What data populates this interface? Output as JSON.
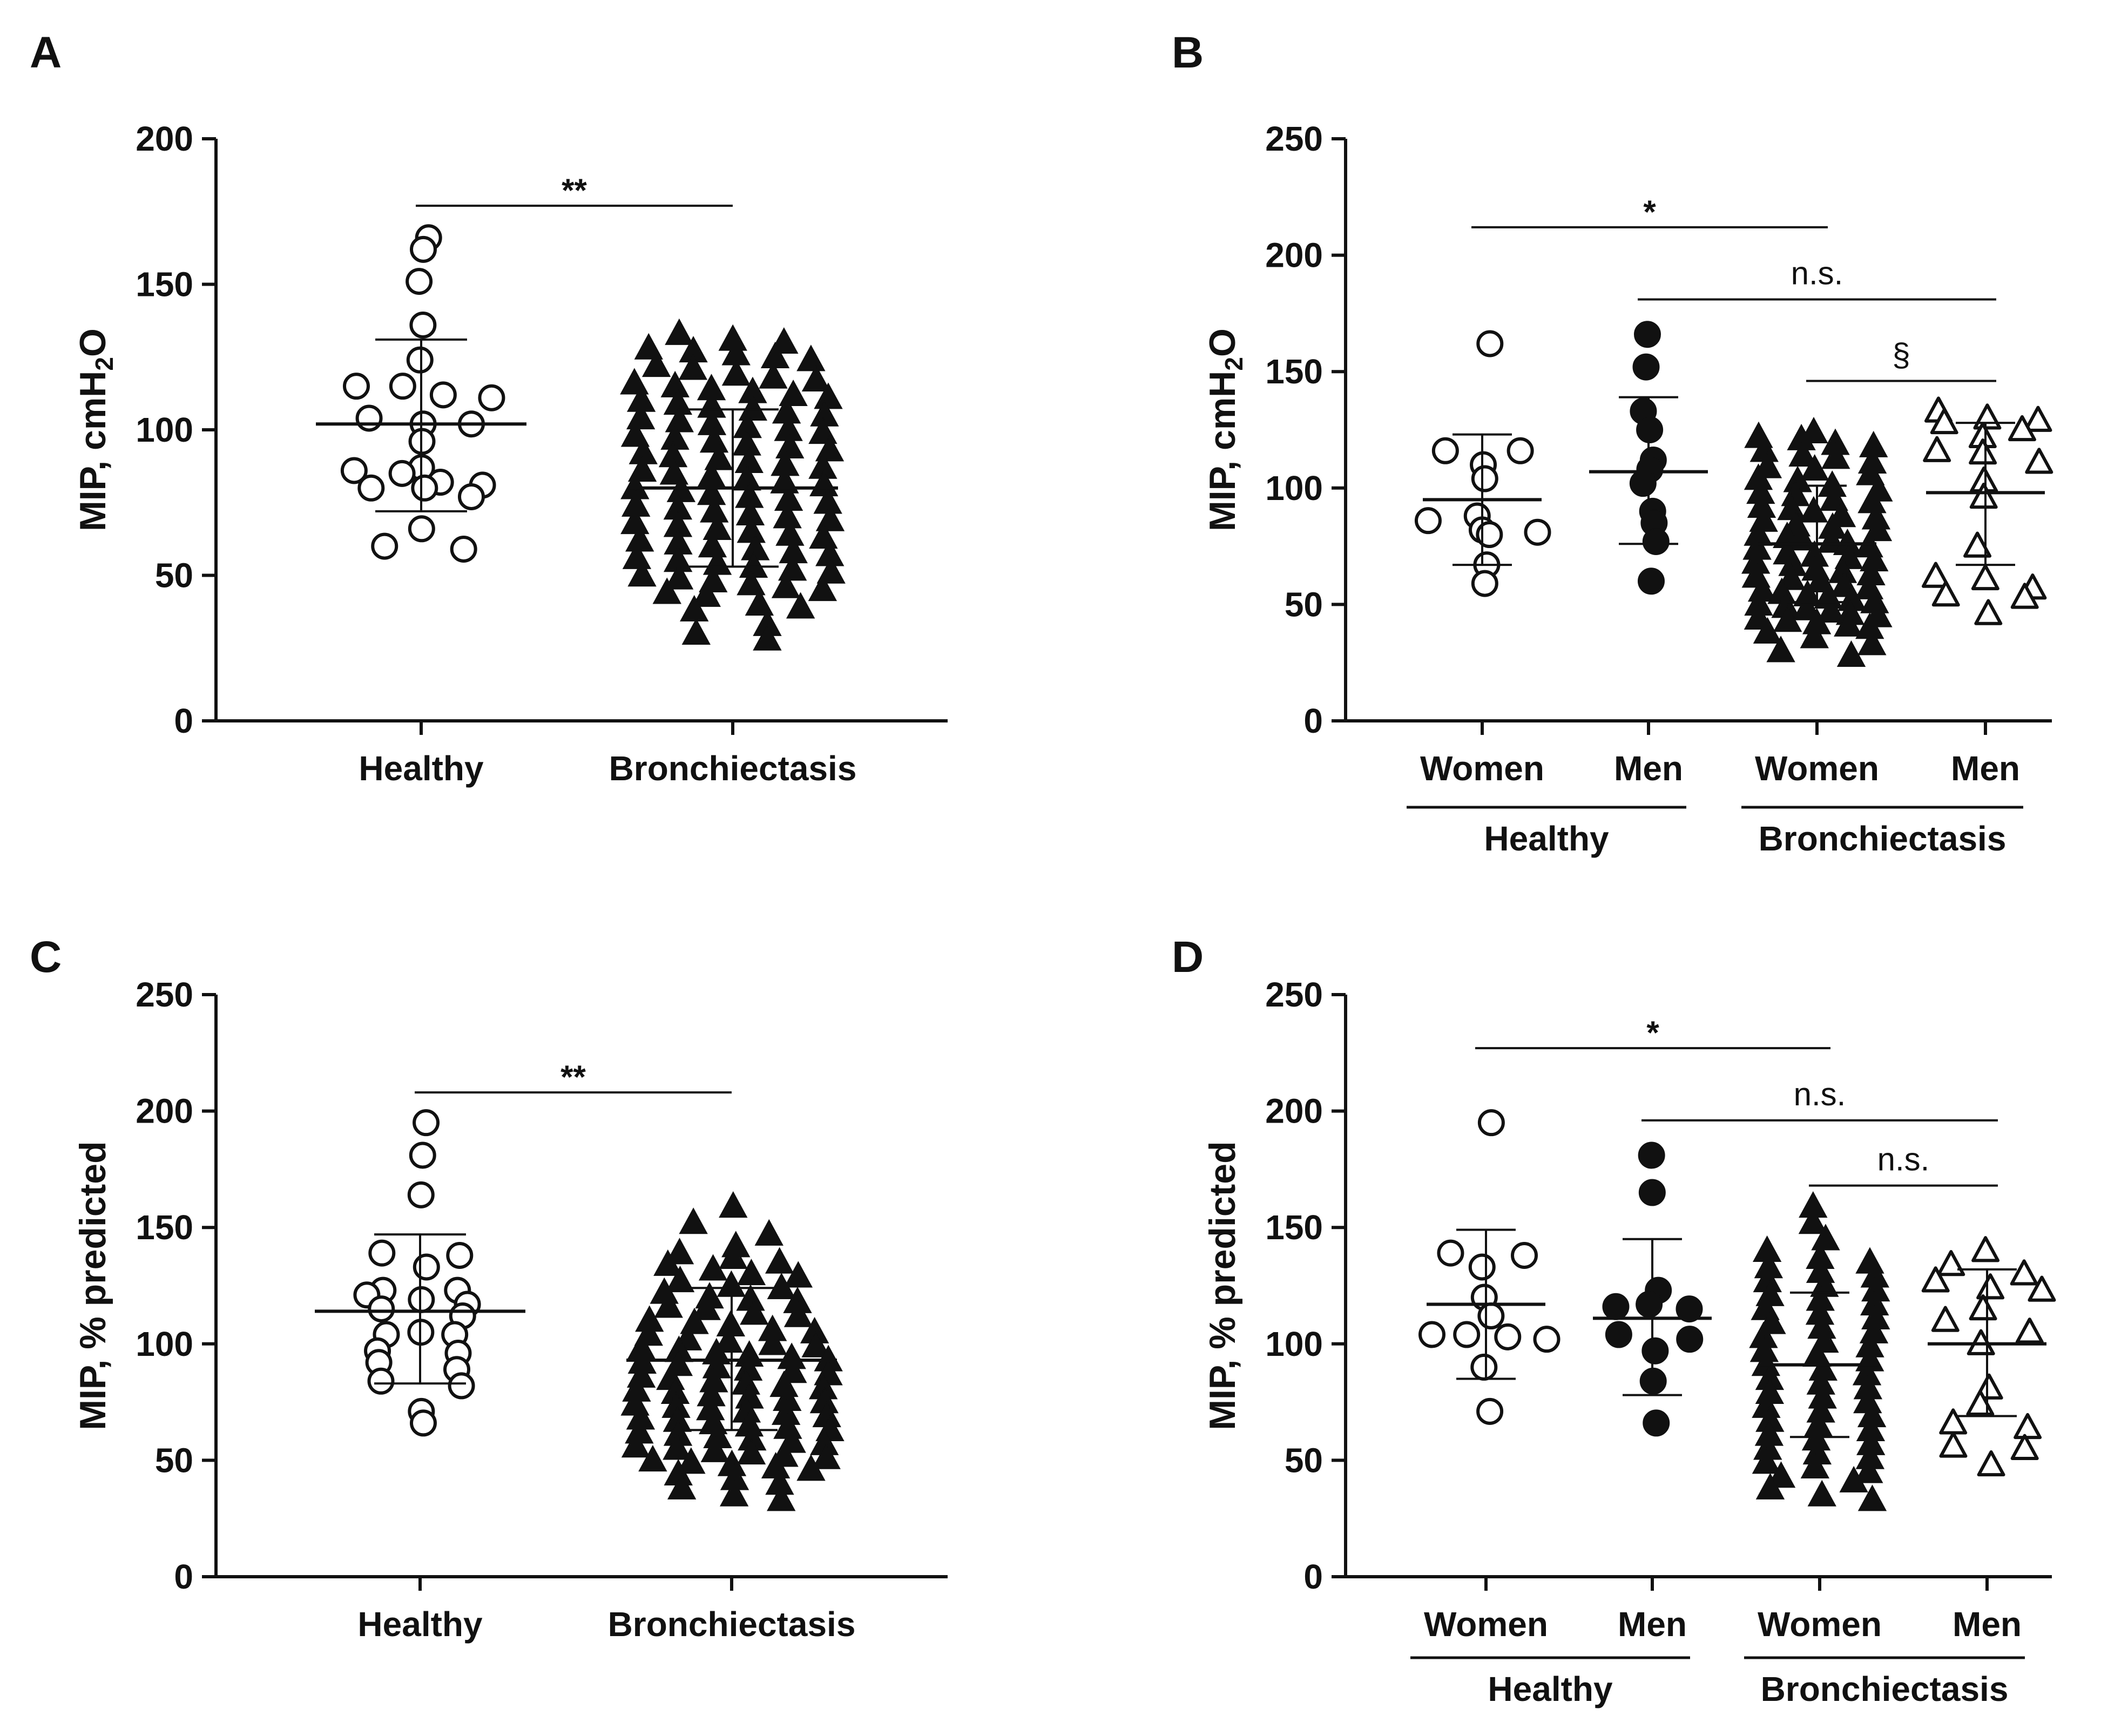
{
  "figure": {
    "description_colors": {
      "ink": "#111111",
      "background": "#ffffff"
    }
  },
  "chart_data": [
    {
      "panel": "A",
      "type": "scatter",
      "title": "",
      "ylabel": "MIP, cmH2O",
      "ylim": [
        0,
        200
      ],
      "yticks": [
        0,
        50,
        100,
        150,
        200
      ],
      "categories": [
        "Healthy",
        "Bronchiectasis"
      ],
      "groups": [],
      "series": [
        {
          "name": "Healthy",
          "marker": "circle-open",
          "mean": 102,
          "sd_low": 72,
          "sd_high": 131,
          "values": [
            166,
            162,
            151,
            136,
            124,
            115,
            115,
            112,
            111,
            104,
            102,
            102,
            96,
            87,
            86,
            85,
            82,
            81,
            80,
            80,
            77,
            66,
            60,
            59
          ]
        },
        {
          "name": "Bronchiectasis",
          "marker": "triangle-filled",
          "mean": 80,
          "sd_low": 53,
          "sd_high": 107,
          "values": [
            133,
            131,
            130,
            128,
            127,
            126,
            125,
            124,
            122,
            121,
            119,
            118,
            117,
            116,
            115,
            114,
            113,
            112,
            111,
            110,
            109,
            108,
            107,
            106,
            105,
            104,
            103,
            102,
            101,
            100,
            99,
            98,
            97,
            96,
            95,
            94,
            93,
            92,
            91,
            90,
            89,
            88,
            87,
            86,
            85,
            84,
            83,
            82,
            81,
            80,
            79,
            78,
            77,
            76,
            75,
            74,
            73,
            72,
            71,
            70,
            69,
            68,
            67,
            66,
            65,
            64,
            63,
            62,
            61,
            60,
            59,
            58,
            57,
            56,
            55,
            54,
            53,
            52,
            51,
            50,
            49,
            48,
            47,
            46,
            45,
            44,
            43,
            40,
            39,
            38,
            33,
            30,
            28
          ]
        }
      ],
      "significance": [
        {
          "label": "**",
          "from": 0,
          "to": 1,
          "y": 177
        }
      ]
    },
    {
      "panel": "B",
      "type": "scatter",
      "title": "",
      "ylabel": "MIP, cmH2O",
      "ylim": [
        0,
        250
      ],
      "yticks": [
        0,
        50,
        100,
        150,
        200,
        250
      ],
      "categories": [
        "Women",
        "Men",
        "Women",
        "Men"
      ],
      "groups": [
        {
          "label": "Healthy",
          "from": 0,
          "to": 1
        },
        {
          "label": "Bronchiectasis",
          "from": 2,
          "to": 3
        }
      ],
      "series": [
        {
          "name": "Healthy Women",
          "marker": "circle-open",
          "mean": 95,
          "sd_low": 67,
          "sd_high": 123,
          "values": [
            162,
            116,
            116,
            110,
            104,
            88,
            86,
            82,
            81,
            80,
            67,
            59
          ]
        },
        {
          "name": "Healthy Men",
          "marker": "circle-filled",
          "mean": 107,
          "sd_low": 76,
          "sd_high": 139,
          "values": [
            166,
            152,
            133,
            125,
            112,
            108,
            102,
            90,
            85,
            77,
            60
          ]
        },
        {
          "name": "Bronchiectasis Women",
          "marker": "triangle-filled",
          "mean": 76,
          "sd_low": 51,
          "sd_high": 101,
          "values": [
            124,
            122,
            121,
            119,
            118,
            116,
            114,
            113,
            111,
            109,
            108,
            106,
            104,
            103,
            101,
            99,
            98,
            97,
            95,
            94,
            92,
            91,
            90,
            88,
            87,
            86,
            84,
            83,
            82,
            80,
            79,
            78,
            77,
            76,
            75,
            74,
            72,
            71,
            70,
            69,
            68,
            67,
            65,
            64,
            63,
            62,
            61,
            60,
            58,
            57,
            56,
            55,
            54,
            53,
            52,
            51,
            50,
            49,
            48,
            47,
            46,
            45,
            44,
            43,
            42,
            41,
            40,
            38,
            36,
            33,
            30,
            28
          ]
        },
        {
          "name": "Bronchiectasis Men",
          "marker": "triangle-open",
          "mean": 98,
          "sd_low": 67,
          "sd_high": 128,
          "values": [
            133,
            130,
            129,
            128,
            125,
            122,
            116,
            115,
            111,
            103,
            96,
            75,
            62,
            61,
            57,
            54,
            53,
            46
          ]
        }
      ],
      "significance": [
        {
          "label": "*",
          "from": 0,
          "to": 2,
          "y": 212
        },
        {
          "label": "n.s.",
          "from": 1,
          "to": 3,
          "y": 181
        },
        {
          "label": "§",
          "from": 2,
          "to": 3,
          "y": 146
        }
      ]
    },
    {
      "panel": "C",
      "type": "scatter",
      "title": "",
      "ylabel": "MIP, % predicted",
      "ylim": [
        0,
        250
      ],
      "yticks": [
        0,
        50,
        100,
        150,
        200,
        250
      ],
      "categories": [
        "Healthy",
        "Bronchiectasis"
      ],
      "groups": [],
      "series": [
        {
          "name": "Healthy",
          "marker": "circle-open",
          "mean": 114,
          "sd_low": 83,
          "sd_high": 147,
          "values": [
            195,
            181,
            164,
            139,
            138,
            133,
            123,
            123,
            121,
            119,
            117,
            115,
            112,
            105,
            104,
            104,
            97,
            96,
            92,
            89,
            84,
            82,
            71,
            66
          ]
        },
        {
          "name": "Bronchiectasis",
          "marker": "triangle-filled",
          "mean": 93,
          "sd_low": 63,
          "sd_high": 124,
          "values": [
            159,
            152,
            147,
            142,
            139,
            137,
            135,
            134,
            132,
            130,
            129,
            127,
            125,
            124,
            122,
            120,
            119,
            118,
            116,
            115,
            113,
            112,
            110,
            109,
            108,
            106,
            105,
            104,
            102,
            101,
            100,
            99,
            98,
            97,
            96,
            95,
            94,
            93,
            92,
            91,
            90,
            89,
            88,
            87,
            86,
            85,
            84,
            83,
            82,
            81,
            80,
            79,
            78,
            77,
            76,
            75,
            74,
            73,
            72,
            71,
            70,
            69,
            68,
            67,
            66,
            65,
            64,
            63,
            62,
            61,
            60,
            59,
            58,
            57,
            56,
            55,
            54,
            53,
            52,
            51,
            50,
            49,
            48,
            47,
            46,
            44,
            42,
            40,
            38,
            35,
            33
          ]
        }
      ],
      "significance": [
        {
          "label": "**",
          "from": 0,
          "to": 1,
          "y": 208
        }
      ]
    },
    {
      "panel": "D",
      "type": "scatter",
      "title": "",
      "ylabel": "MIP, % predicted",
      "ylim": [
        0,
        250
      ],
      "yticks": [
        0,
        50,
        100,
        150,
        200,
        250
      ],
      "categories": [
        "Women",
        "Men",
        "Women",
        "Men"
      ],
      "groups": [
        {
          "label": "Healthy",
          "from": 0,
          "to": 1
        },
        {
          "label": "Bronchiectasis",
          "from": 2,
          "to": 3
        }
      ],
      "series": [
        {
          "name": "Healthy Women",
          "marker": "circle-open",
          "mean": 117,
          "sd_low": 85,
          "sd_high": 149,
          "values": [
            195,
            139,
            138,
            133,
            120,
            112,
            104,
            104,
            103,
            102,
            90,
            71
          ]
        },
        {
          "name": "Healthy Men",
          "marker": "circle-filled",
          "mean": 111,
          "sd_low": 78,
          "sd_high": 145,
          "values": [
            181,
            165,
            123,
            117,
            116,
            115,
            104,
            102,
            97,
            84,
            66
          ]
        },
        {
          "name": "Bronchiectasis Women",
          "marker": "triangle-filled",
          "mean": 91,
          "sd_low": 60,
          "sd_high": 122,
          "values": [
            159,
            152,
            145,
            140,
            137,
            135,
            133,
            131,
            129,
            127,
            125,
            123,
            121,
            119,
            117,
            115,
            113,
            111,
            109,
            107,
            105,
            103,
            101,
            99,
            97,
            95,
            93,
            91,
            89,
            87,
            85,
            83,
            81,
            79,
            77,
            75,
            73,
            71,
            69,
            67,
            65,
            63,
            61,
            59,
            57,
            55,
            53,
            51,
            49,
            47,
            45,
            43,
            41,
            38,
            35,
            33
          ]
        },
        {
          "name": "Bronchiectasis Men",
          "marker": "triangle-open",
          "mean": 100,
          "sd_low": 69,
          "sd_high": 132,
          "values": [
            140,
            134,
            130,
            127,
            124,
            123,
            115,
            110,
            105,
            100,
            81,
            74,
            66,
            64,
            56,
            55,
            48
          ]
        }
      ],
      "significance": [
        {
          "label": "*",
          "from": 0,
          "to": 2,
          "y": 227
        },
        {
          "label": "n.s.",
          "from": 1,
          "to": 3,
          "y": 196
        },
        {
          "label": "n.s.",
          "from": 2,
          "to": 3,
          "y": 168
        }
      ]
    }
  ]
}
